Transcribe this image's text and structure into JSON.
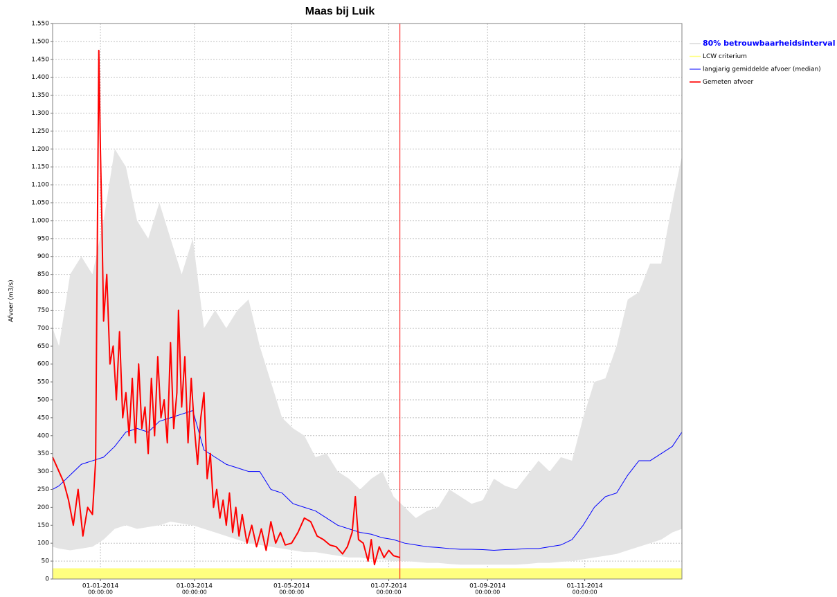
{
  "chart_data": {
    "type": "timeseries",
    "title": "Maas bij Luik",
    "ylabel": "Afvoer (m3/s)",
    "grid": true,
    "legend": "right",
    "xlim": [
      "2013-12-02",
      "2015-01-01"
    ],
    "ylim": [
      0,
      1550
    ],
    "xticks": [
      {
        "value": "2014-01-01",
        "label": "01-01-2014",
        "time": "00:00:00"
      },
      {
        "value": "2014-03-01",
        "label": "01-03-2014",
        "time": "00:00:00"
      },
      {
        "value": "2014-05-01",
        "label": "01-05-2014",
        "time": "00:00:00"
      },
      {
        "value": "2014-07-01",
        "label": "01-07-2014",
        "time": "00:00:00"
      },
      {
        "value": "2014-09-01",
        "label": "01-09-2014",
        "time": "00:00:00"
      },
      {
        "value": "2014-11-01",
        "label": "01-11-2014",
        "time": "00:00:00"
      }
    ],
    "yticks": [
      0,
      50,
      100,
      150,
      200,
      250,
      300,
      350,
      400,
      450,
      500,
      550,
      600,
      650,
      700,
      750,
      800,
      850,
      900,
      950,
      {
        "value": 1000,
        "label": "1.000"
      },
      {
        "value": 1050,
        "label": "1.050"
      },
      {
        "value": 1100,
        "label": "1.100"
      },
      {
        "value": 1150,
        "label": "1.150"
      },
      {
        "value": 1200,
        "label": "1.200"
      },
      {
        "value": 1250,
        "label": "1.250"
      },
      {
        "value": 1300,
        "label": "1.300"
      },
      {
        "value": 1350,
        "label": "1.350"
      },
      {
        "value": 1400,
        "label": "1.400"
      },
      {
        "value": 1450,
        "label": "1.450"
      },
      {
        "value": 1500,
        "label": "1.500"
      },
      {
        "value": 1550,
        "label": "1.550"
      }
    ],
    "x": [
      "2013-12-02",
      "2013-12-06",
      "2013-12-13",
      "2013-12-20",
      "2013-12-27",
      "2014-01-03",
      "2014-01-10",
      "2014-01-17",
      "2014-01-24",
      "2014-01-31",
      "2014-02-07",
      "2014-02-14",
      "2014-02-21",
      "2014-02-28",
      "2014-03-07",
      "2014-03-14",
      "2014-03-21",
      "2014-03-28",
      "2014-04-04",
      "2014-04-11",
      "2014-04-18",
      "2014-04-25",
      "2014-05-02",
      "2014-05-09",
      "2014-05-16",
      "2014-05-23",
      "2014-05-30",
      "2014-06-06",
      "2014-06-13",
      "2014-06-20",
      "2014-06-27",
      "2014-07-04",
      "2014-07-11",
      "2014-07-18",
      "2014-07-25",
      "2014-08-01",
      "2014-08-08",
      "2014-08-15",
      "2014-08-22",
      "2014-08-29",
      "2014-09-05",
      "2014-09-12",
      "2014-09-19",
      "2014-09-26",
      "2014-10-03",
      "2014-10-10",
      "2014-10-17",
      "2014-10-24",
      "2014-10-31",
      "2014-11-07",
      "2014-11-14",
      "2014-11-21",
      "2014-11-28",
      "2014-12-05",
      "2014-12-12",
      "2014-12-19",
      "2014-12-26",
      "2015-01-01"
    ],
    "series": [
      {
        "name": "80% betrouwbaarheidsinterval",
        "kind": "band",
        "color": "#e4e4e4",
        "highlighted": true,
        "high": [
          700,
          650,
          850,
          900,
          850,
          1000,
          1200,
          1150,
          1000,
          950,
          1050,
          950,
          850,
          950,
          700,
          750,
          700,
          750,
          780,
          650,
          550,
          450,
          420,
          400,
          340,
          350,
          300,
          280,
          250,
          280,
          300,
          230,
          200,
          170,
          190,
          200,
          250,
          230,
          210,
          220,
          280,
          260,
          250,
          290,
          330,
          300,
          340,
          330,
          450,
          550,
          560,
          650,
          780,
          800,
          880,
          880,
          1050,
          1180
        ],
        "low": [
          90,
          85,
          80,
          85,
          90,
          110,
          140,
          150,
          140,
          145,
          150,
          160,
          155,
          150,
          140,
          130,
          120,
          110,
          100,
          95,
          90,
          85,
          80,
          75,
          75,
          70,
          65,
          60,
          60,
          55,
          55,
          50,
          50,
          48,
          45,
          45,
          42,
          40,
          40,
          40,
          40,
          40,
          40,
          42,
          45,
          45,
          48,
          50,
          55,
          60,
          65,
          70,
          80,
          90,
          100,
          110,
          130,
          140
        ]
      },
      {
        "name": "LCW criterium",
        "kind": "threshold",
        "color": "#ffff80",
        "value": 30
      },
      {
        "name": "langjarig gemiddelde afvoer (median)",
        "kind": "line",
        "color": "#0000ff",
        "width": 1,
        "values": [
          250,
          260,
          290,
          320,
          330,
          340,
          370,
          410,
          420,
          410,
          440,
          450,
          460,
          470,
          360,
          340,
          320,
          310,
          300,
          300,
          250,
          240,
          210,
          200,
          190,
          170,
          150,
          140,
          130,
          125,
          115,
          110,
          100,
          95,
          90,
          88,
          85,
          83,
          83,
          82,
          80,
          82,
          83,
          85,
          85,
          90,
          95,
          110,
          150,
          200,
          230,
          240,
          290,
          330,
          330,
          350,
          370,
          410
        ]
      },
      {
        "name": "Gemeten afvoer",
        "kind": "line",
        "color": "#ff0000",
        "width": 2,
        "x": [
          "2013-12-02",
          "2013-12-06",
          "2013-12-09",
          "2013-12-12",
          "2013-12-15",
          "2013-12-18",
          "2013-12-21",
          "2013-12-24",
          "2013-12-27",
          "2013-12-29",
          "2013-12-30",
          "2013-12-31",
          "2014-01-01",
          "2014-01-02",
          "2014-01-03",
          "2014-01-05",
          "2014-01-07",
          "2014-01-09",
          "2014-01-11",
          "2014-01-13",
          "2014-01-15",
          "2014-01-17",
          "2014-01-19",
          "2014-01-21",
          "2014-01-23",
          "2014-01-25",
          "2014-01-27",
          "2014-01-29",
          "2014-01-31",
          "2014-02-02",
          "2014-02-04",
          "2014-02-06",
          "2014-02-08",
          "2014-02-10",
          "2014-02-12",
          "2014-02-14",
          "2014-02-16",
          "2014-02-18",
          "2014-02-19",
          "2014-02-21",
          "2014-02-23",
          "2014-02-25",
          "2014-02-27",
          "2014-03-01",
          "2014-03-03",
          "2014-03-05",
          "2014-03-07",
          "2014-03-09",
          "2014-03-11",
          "2014-03-13",
          "2014-03-15",
          "2014-03-17",
          "2014-03-19",
          "2014-03-21",
          "2014-03-23",
          "2014-03-25",
          "2014-03-27",
          "2014-03-29",
          "2014-03-31",
          "2014-04-03",
          "2014-04-06",
          "2014-04-09",
          "2014-04-12",
          "2014-04-15",
          "2014-04-18",
          "2014-04-21",
          "2014-04-24",
          "2014-04-27",
          "2014-05-01",
          "2014-05-05",
          "2014-05-09",
          "2014-05-13",
          "2014-05-17",
          "2014-05-21",
          "2014-05-25",
          "2014-05-29",
          "2014-06-02",
          "2014-06-05",
          "2014-06-08",
          "2014-06-10",
          "2014-06-12",
          "2014-06-15",
          "2014-06-18",
          "2014-06-20",
          "2014-06-22",
          "2014-06-25",
          "2014-06-28",
          "2014-07-01",
          "2014-07-04",
          "2014-07-08"
        ],
        "values": [
          340,
          300,
          270,
          220,
          150,
          250,
          120,
          200,
          180,
          330,
          900,
          1475,
          1200,
          980,
          720,
          850,
          600,
          650,
          500,
          690,
          450,
          520,
          400,
          560,
          380,
          600,
          420,
          480,
          350,
          560,
          400,
          620,
          450,
          500,
          380,
          660,
          420,
          520,
          750,
          480,
          620,
          380,
          560,
          420,
          320,
          450,
          520,
          280,
          350,
          200,
          250,
          170,
          220,
          150,
          240,
          130,
          200,
          120,
          180,
          100,
          150,
          90,
          140,
          80,
          160,
          100,
          130,
          95,
          100,
          130,
          170,
          160,
          120,
          110,
          95,
          90,
          70,
          90,
          130,
          230,
          110,
          100,
          50,
          110,
          40,
          90,
          60,
          80,
          65,
          60
        ]
      }
    ],
    "markers": [
      {
        "x": "2014-07-08",
        "color": "#ff0000"
      }
    ]
  }
}
